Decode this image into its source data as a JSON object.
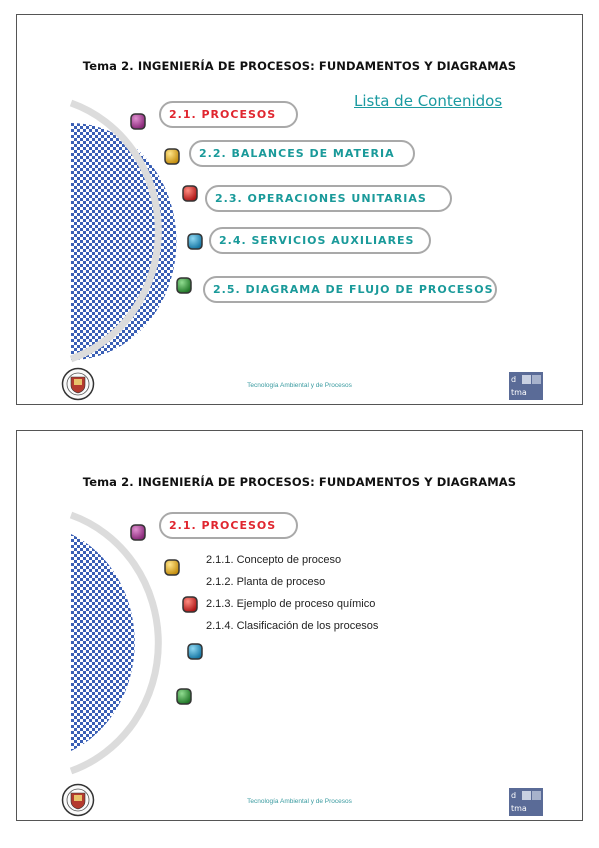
{
  "slides": [
    {
      "title": "Tema 2. INGENIERÍA DE PROCESOS: FUNDAMENTOS Y DIAGRAMAS",
      "contents_link": "Lista de Contenidos",
      "items": [
        {
          "label": "2.1. PROCESOS",
          "bullet_color": "#b0449a",
          "text_color": "#e0262f"
        },
        {
          "label": "2.2. BALANCES DE MATERIA",
          "bullet_color": "#e1b124",
          "text_color": "#1a9a9a"
        },
        {
          "label": "2.3. OPERACIONES UNITARIAS",
          "bullet_color": "#d9302c",
          "text_color": "#1a9a9a"
        },
        {
          "label": "2.4. SERVICIOS AUXILIARES",
          "bullet_color": "#2199c2",
          "text_color": "#1a9a9a"
        },
        {
          "label": "2.5. DIAGRAMA DE FLUJO DE PROCESOS",
          "bullet_color": "#3a9a3f",
          "text_color": "#1a9a9a"
        }
      ],
      "footer": "Tecnología Ambiental y de Procesos",
      "logo_text": {
        "line1": "d",
        "line2": "tma"
      }
    },
    {
      "title": "Tema 2. INGENIERÍA DE PROCESOS: FUNDAMENTOS Y DIAGRAMAS",
      "section": "2.1. PROCESOS",
      "subitems": [
        "2.1.1. Concepto de proceso",
        "2.1.2. Planta de proceso",
        "2.1.3. Ejemplo de proceso químico",
        "2.1.4. Clasificación de los procesos"
      ],
      "footer": "Tecnología Ambiental y de Procesos",
      "logo_text": {
        "line1": "d",
        "line2": "tma"
      }
    }
  ],
  "colors": {
    "accent_teal": "#1a9a9a",
    "accent_red": "#e0262f",
    "pattern_blue": "#3a5fb5"
  }
}
